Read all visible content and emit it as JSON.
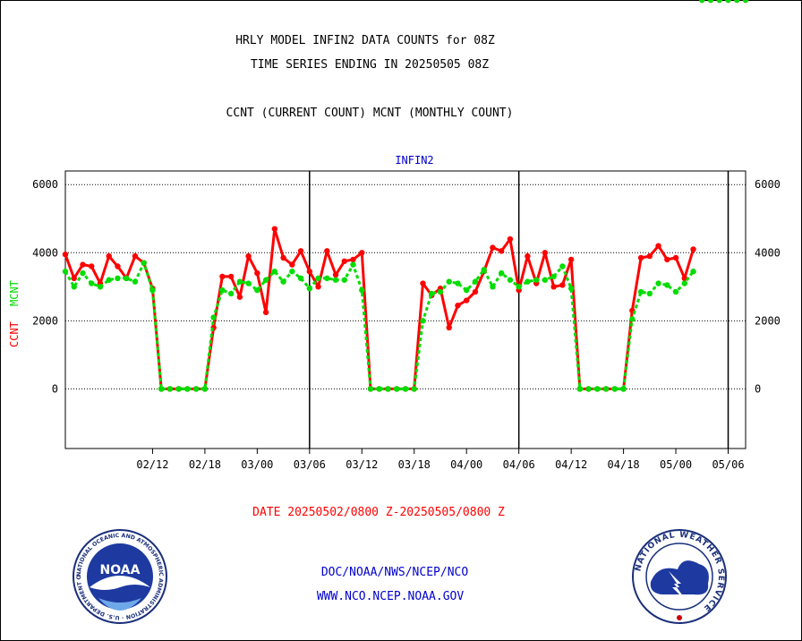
{
  "header": {
    "title_line1": "HRLY MODEL INFIN2 DATA COUNTS for 08Z",
    "title_line2": "TIME SERIES ENDING IN 20250505 08Z",
    "subtitle": "CCNT (CURRENT COUNT) MCNT (MONTHLY COUNT)"
  },
  "footer": {
    "date_range": "DATE 20250502/0800 Z-20250505/0800 Z",
    "link1": "DOC/NOAA/NWS/NCEP/NCO",
    "link2": "WWW.NCO.NCEP.NOAA.GOV"
  },
  "logos": {
    "noaa_text": "NOAA",
    "noaa_ring": "NATIONAL OCEANIC AND ATMOSPHERIC ADMINISTRATION · U.S. DEPARTMENT OF COMMERCE",
    "nws_ring": "NATIONAL WEATHER SERVICE"
  },
  "colors": {
    "ccnt": "#ff0000",
    "mcnt": "#00dd00",
    "title": "#000000",
    "panel_label": "#0000cc",
    "date": "#ff0000",
    "links": "#0000cc"
  },
  "chart_data": {
    "type": "line",
    "panel_label": "INFIN2",
    "ylabel_left": "CCNT",
    "ylabel_right": "MCNT",
    "ylim": [
      -1750,
      6400
    ],
    "yticks": [
      0,
      2000,
      4000,
      6000
    ],
    "grid": "horizontal dotted",
    "x_tick_labels": [
      "02/12",
      "02/18",
      "03/00",
      "03/06",
      "03/12",
      "03/18",
      "04/00",
      "04/06",
      "04/12",
      "04/18",
      "05/00",
      "05/06"
    ],
    "x_tick_hours": [
      4,
      10,
      16,
      22,
      28,
      34,
      40,
      46,
      52,
      58,
      64,
      70
    ],
    "day_boundaries": [
      22,
      46,
      70
    ],
    "x_hours": [
      -6,
      -5,
      -4,
      -3,
      -2,
      -1,
      0,
      1,
      2,
      3,
      4,
      5,
      6,
      7,
      8,
      9,
      10,
      11,
      12,
      13,
      14,
      15,
      16,
      17,
      18,
      19,
      20,
      21,
      22,
      23,
      24,
      25,
      26,
      27,
      28,
      29,
      30,
      31,
      32,
      33,
      34,
      35,
      36,
      37,
      38,
      39,
      40,
      41,
      42,
      43,
      44,
      45,
      46,
      47,
      48,
      49,
      50,
      51,
      52,
      53,
      54,
      55,
      56,
      57,
      58,
      59,
      60,
      61,
      62,
      63,
      64,
      65,
      66,
      67,
      68,
      69,
      70,
      71,
      72
    ],
    "series": [
      {
        "name": "CCNT",
        "values": [
          3950,
          3250,
          3650,
          3600,
          3100,
          3900,
          3600,
          3250,
          3900,
          3700,
          2950,
          0,
          0,
          0,
          0,
          0,
          0,
          1800,
          3300,
          3300,
          2700,
          3900,
          3400,
          2250,
          4700,
          3850,
          3650,
          4050,
          3450,
          3000,
          4050,
          3350,
          3750,
          3800,
          4000,
          0,
          0,
          0,
          0,
          0,
          0,
          3100,
          2750,
          2950,
          1800,
          2450,
          2600,
          2850,
          3450,
          4150,
          4050,
          4400,
          2900,
          3900,
          3100,
          4000,
          3000,
          3050,
          3800,
          0,
          0,
          0,
          0,
          0,
          0,
          2300,
          3850,
          3900,
          4200,
          3800,
          3850,
          3250,
          4100
        ]
      },
      {
        "name": "MCNT",
        "values": [
          3450,
          3000,
          3400,
          3100,
          3000,
          3200,
          3250,
          3250,
          3150,
          3700,
          2900,
          0,
          0,
          0,
          0,
          0,
          0,
          2100,
          2900,
          2800,
          3150,
          3100,
          2900,
          3200,
          3450,
          3150,
          3450,
          3250,
          2950,
          3250,
          3250,
          3200,
          3200,
          3650,
          2900,
          0,
          0,
          0,
          0,
          0,
          0,
          2000,
          2800,
          2850,
          3150,
          3100,
          2900,
          3150,
          3500,
          3000,
          3400,
          3200,
          3000,
          3150,
          3200,
          3200,
          3300,
          3600,
          2950,
          0,
          0,
          0,
          0,
          0,
          0,
          2050,
          2850,
          2800,
          3100,
          3050,
          2850,
          3100,
          3450
        ]
      }
    ]
  }
}
